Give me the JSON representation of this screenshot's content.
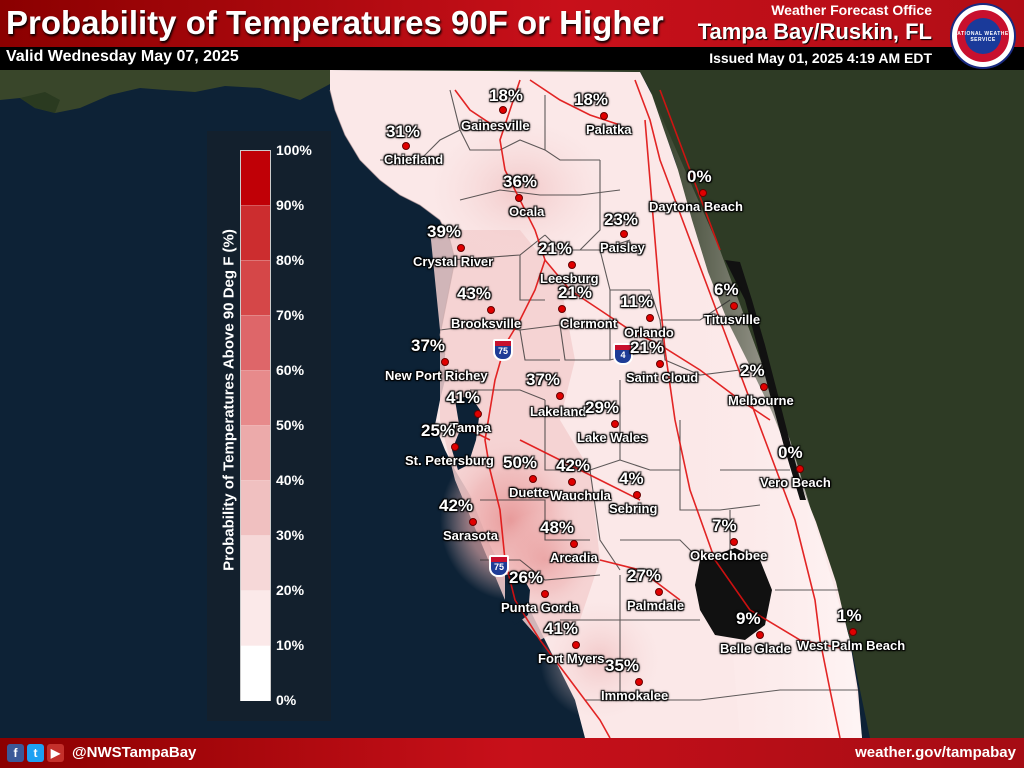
{
  "header": {
    "title": "Probability of Temperatures 90F or Higher",
    "valid": "Valid Wednesday May 07, 2025",
    "office_line1": "Weather Forecast Office",
    "office_line2": "Tampa Bay/Ruskin, FL",
    "issued": "Issued May 01, 2025 4:19 AM EDT",
    "logo_text": "NATIONAL WEATHER SERVICE"
  },
  "legend": {
    "axis_label": "Probability of Temperatures Above 90 Deg F (%)",
    "ticks": [
      "100%",
      "90%",
      "80%",
      "70%",
      "60%",
      "50%",
      "40%",
      "30%",
      "20%",
      "10%",
      "0%"
    ],
    "colors": [
      "#c00006",
      "#cc2d2f",
      "#d54748",
      "#de6669",
      "#e78a8b",
      "#ecaaaa",
      "#f0c0c0",
      "#f6d8d8",
      "#fbe9e9",
      "#ffffff"
    ]
  },
  "colors": {
    "water": "#0d2236",
    "land_outside": "#39462a",
    "highway": "#e01010",
    "county_line": "#2a2a2a",
    "header_red": "#c8101a"
  },
  "interstates": [
    "75",
    "4",
    "75"
  ],
  "cities": [
    {
      "name": "Gainesville",
      "value": "18%"
    },
    {
      "name": "Palatka",
      "value": "18%"
    },
    {
      "name": "Chiefland",
      "value": "31%"
    },
    {
      "name": "Ocala",
      "value": "36%"
    },
    {
      "name": "Daytona Beach",
      "value": "0%"
    },
    {
      "name": "Paisley",
      "value": "23%"
    },
    {
      "name": "Crystal River",
      "value": "39%"
    },
    {
      "name": "Leesburg",
      "value": "21%"
    },
    {
      "name": "Brooksville",
      "value": "43%"
    },
    {
      "name": "Clermont",
      "value": "21%"
    },
    {
      "name": "Orlando",
      "value": "11%"
    },
    {
      "name": "Titusville",
      "value": "6%"
    },
    {
      "name": "New Port Richey",
      "value": "37%"
    },
    {
      "name": "Saint Cloud",
      "value": "21%"
    },
    {
      "name": "Melbourne",
      "value": "2%"
    },
    {
      "name": "Tampa",
      "value": "41%"
    },
    {
      "name": "Lakeland",
      "value": "37%"
    },
    {
      "name": "Lake Wales",
      "value": "29%"
    },
    {
      "name": "St. Petersburg",
      "value": "25%"
    },
    {
      "name": "Duette",
      "value": "50%"
    },
    {
      "name": "Wauchula",
      "value": "42%"
    },
    {
      "name": "Sebring",
      "value": "4%"
    },
    {
      "name": "Vero Beach",
      "value": "0%"
    },
    {
      "name": "Sarasota",
      "value": "42%"
    },
    {
      "name": "Arcadia",
      "value": "48%"
    },
    {
      "name": "Okeechobee",
      "value": "7%"
    },
    {
      "name": "Punta Gorda",
      "value": "26%"
    },
    {
      "name": "Palmdale",
      "value": "27%"
    },
    {
      "name": "Belle Glade",
      "value": "9%"
    },
    {
      "name": "West Palm Beach",
      "value": "1%"
    },
    {
      "name": "Fort Myers",
      "value": "41%"
    },
    {
      "name": "Immokalee",
      "value": "35%"
    }
  ],
  "footer": {
    "social_icons": [
      "facebook-icon",
      "twitter-icon",
      "youtube-icon"
    ],
    "handle": "@NWSTampaBay",
    "website": "weather.gov/tampabay"
  }
}
